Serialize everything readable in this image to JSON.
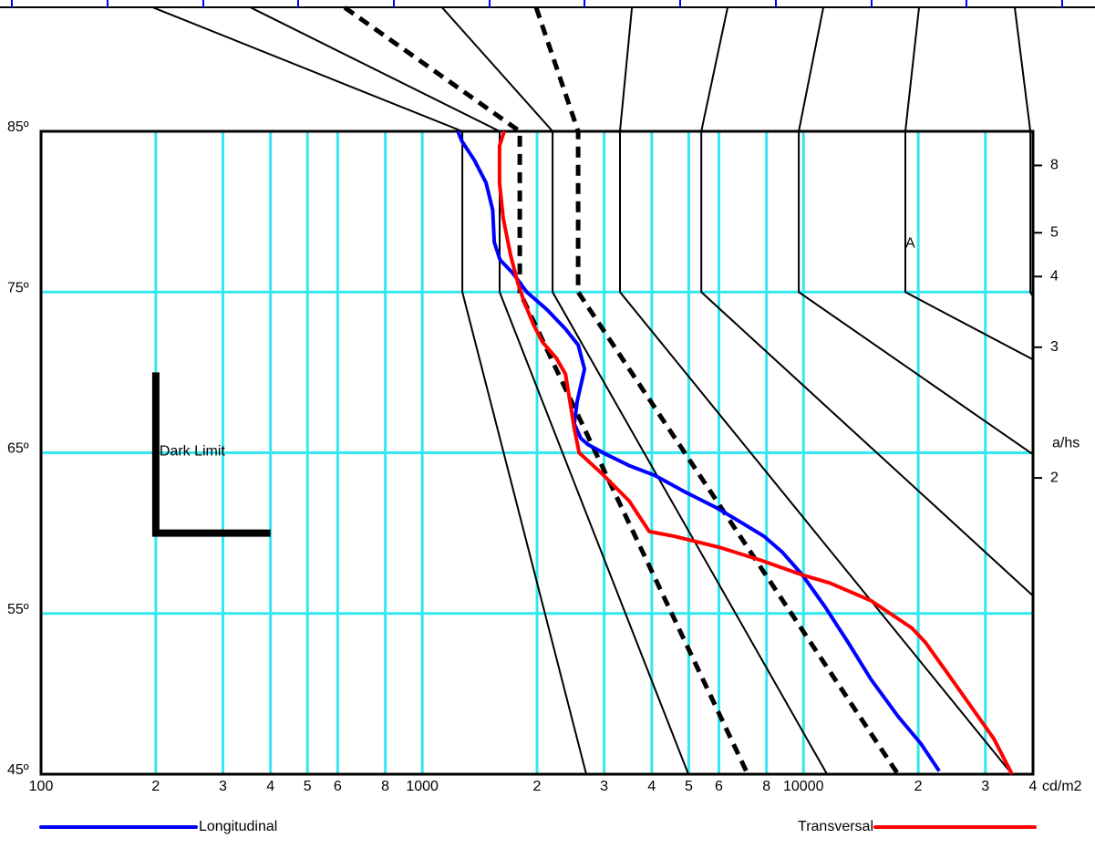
{
  "chart_data": {
    "type": "line",
    "xscale": "log",
    "xlim": [
      100,
      40000
    ],
    "xticks": [
      100,
      {
        "value": 200,
        "label": "2"
      },
      {
        "value": 300,
        "label": "3"
      },
      {
        "value": 400,
        "label": "4"
      },
      {
        "value": 500,
        "label": "5"
      },
      {
        "value": 600,
        "label": "6"
      },
      {
        "value": 800,
        "label": "8"
      },
      1000,
      {
        "value": 2000,
        "label": "2"
      },
      {
        "value": 3000,
        "label": "3"
      },
      {
        "value": 4000,
        "label": "4"
      },
      {
        "value": 5000,
        "label": "5"
      },
      {
        "value": 6000,
        "label": "6"
      },
      {
        "value": 8000,
        "label": "8"
      },
      10000,
      {
        "value": 20000,
        "label": "2"
      },
      {
        "value": 30000,
        "label": "3"
      },
      {
        "value": 40000,
        "label": "4"
      }
    ],
    "xlabel": "cd/m2",
    "ylim": [
      45,
      85
    ],
    "yticks": [
      {
        "value": 45,
        "label": "45º"
      },
      {
        "value": 55,
        "label": "55º"
      },
      {
        "value": 65,
        "label": "65º"
      },
      {
        "value": 75,
        "label": "75º"
      },
      {
        "value": 85,
        "label": "85º"
      }
    ],
    "y2scale": "tan",
    "y2label": "a/hs",
    "y2ticks": [
      2,
      3,
      4,
      5,
      8
    ],
    "grid": true,
    "grid_color": "#33e8ee",
    "legend": "bottom",
    "series": [
      {
        "name": "Longitudinal",
        "color": "#0000ff",
        "x": [
          1240,
          1270,
          1370,
          1470,
          1530,
          1545,
          1600,
          1725,
          1880,
          2125,
          2375,
          2565,
          2665,
          2550,
          2505,
          2605,
          2725,
          3040,
          3490,
          4070,
          4855,
          5890,
          6825,
          7885,
          8810,
          9930,
          11400,
          13090,
          15030,
          17700,
          20320,
          22700
        ],
        "values": [
          85,
          84.4,
          83.2,
          81.8,
          80.1,
          78.1,
          77,
          76.2,
          75,
          73.9,
          72.7,
          71.7,
          70.2,
          68.2,
          66.8,
          65.9,
          65.5,
          64.9,
          64.2,
          63.6,
          62.6,
          61.6,
          60.7,
          59.8,
          58.8,
          57.4,
          55.4,
          53.2,
          50.9,
          48.6,
          46.9,
          45.2
        ]
      },
      {
        "name": "Transversal",
        "color": "#ff0000",
        "x": [
          1640,
          1595,
          1595,
          1630,
          1705,
          1780,
          1850,
          1955,
          2065,
          2245,
          2375,
          2440,
          2505,
          2580,
          2960,
          3490,
          3940,
          4595,
          6050,
          7760,
          9930,
          11720,
          15030,
          19230,
          20890,
          23990,
          27530,
          31580,
          35240
        ],
        "values": [
          85,
          84.1,
          81.8,
          79.6,
          77.3,
          75.6,
          74.4,
          73,
          71.9,
          70.9,
          69.9,
          68.2,
          66.5,
          65,
          63.7,
          62,
          60.1,
          59.8,
          59.1,
          58.3,
          57.4,
          56.9,
          55.8,
          54.1,
          53.2,
          51.2,
          49.2,
          47.2,
          45
        ]
      }
    ],
    "guide_lines": [
      {
        "style": "solid",
        "x": [
          197,
          1274,
          1274,
          2693
        ],
        "values": [
          92.7,
          85,
          75,
          45
        ]
      },
      {
        "style": "solid",
        "x": [
          355,
          1596,
          1596,
          4990
        ],
        "values": [
          92.7,
          85,
          75,
          45
        ]
      },
      {
        "style": "dashed",
        "x": [
          626,
          1802,
          1802,
          7140
        ],
        "values": [
          92.7,
          85,
          75,
          45
        ]
      },
      {
        "style": "solid",
        "x": [
          1128,
          2198,
          2198,
          11530
        ],
        "values": [
          92.7,
          85,
          75,
          45
        ]
      },
      {
        "style": "dashed",
        "x": [
          1990,
          2564,
          2564,
          17700
        ],
        "values": [
          92.7,
          85,
          75,
          45
        ]
      },
      {
        "style": "solid",
        "x": [
          3548,
          3302,
          3302,
          35240
        ],
        "values": [
          92.7,
          85,
          75,
          45
        ]
      },
      {
        "style": "solid",
        "x": [
          6324,
          5395,
          5395,
          40000
        ],
        "values": [
          92.7,
          85,
          75,
          56.1
        ]
      },
      {
        "style": "solid",
        "x": [
          11270,
          9720,
          9720,
          40000
        ],
        "values": [
          92.7,
          85,
          75,
          64.9
        ]
      },
      {
        "style": "solid",
        "x": [
          20100,
          18500,
          18500,
          40000
        ],
        "values": [
          92.7,
          85,
          75,
          70.8
        ]
      },
      {
        "style": "solid",
        "x": [
          35830,
          39360,
          39360,
          40000
        ],
        "values": [
          92.7,
          85,
          75,
          74.7
        ]
      }
    ],
    "dark_limit": {
      "label": "Dark Limit",
      "x": [
        200,
        200,
        400
      ],
      "values": [
        70,
        60,
        60
      ]
    },
    "annotations": [
      {
        "text": "A",
        "x": 18500,
        "y": 78
      }
    ]
  }
}
